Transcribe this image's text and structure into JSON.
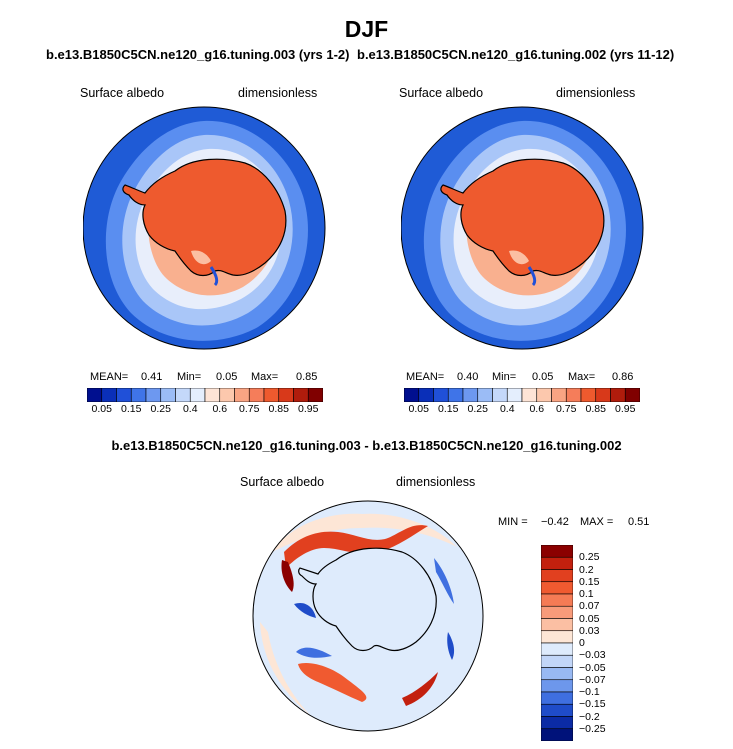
{
  "title": "DJF",
  "case_left": "b.e13.B1850C5CN.ne120_g16.tuning.003 (yrs 1-2)",
  "case_right": "b.e13.B1850C5CN.ne120_g16.tuning.002 (yrs 11-12)",
  "diff_title": "b.e13.B1850C5CN.ne120_g16.tuning.003 - b.e13.B1850C5CN.ne120_g16.tuning.002",
  "colors": {
    "land_orange": "#ee5a2e",
    "ocean_blue": "#1f5bd6"
  },
  "chart_data": [
    {
      "type": "heatmap",
      "projection": "south-polar-stereographic",
      "variable": "Surface albedo",
      "units": "dimensionless",
      "stats": {
        "mean_label": "MEAN=",
        "mean": "0.41",
        "min_label": "Min=",
        "min": "0.05",
        "max_label": "Max=",
        "max": "0.85"
      },
      "colorbar": {
        "orientation": "horizontal",
        "levels": [
          "0.05",
          "0.15",
          "0.25",
          "0.4",
          "0.6",
          "0.75",
          "0.85",
          "0.95"
        ],
        "colors": [
          "#000f8f",
          "#0a2fb8",
          "#2050d8",
          "#3f74e8",
          "#6d98f0",
          "#9bbcf6",
          "#c4d8fa",
          "#e4eefd",
          "#fde4d6",
          "#fcc8ad",
          "#f9a483",
          "#f57d5a",
          "#ee5a2e",
          "#d8391a",
          "#b01c0c",
          "#800000"
        ]
      }
    },
    {
      "type": "heatmap",
      "projection": "south-polar-stereographic",
      "variable": "Surface albedo",
      "units": "dimensionless",
      "stats": {
        "mean_label": "MEAN=",
        "mean": "0.40",
        "min_label": "Min=",
        "min": "0.05",
        "max_label": "Max=",
        "max": "0.86"
      },
      "colorbar": {
        "orientation": "horizontal",
        "levels": [
          "0.05",
          "0.15",
          "0.25",
          "0.4",
          "0.6",
          "0.75",
          "0.85",
          "0.95"
        ],
        "colors": [
          "#000f8f",
          "#0a2fb8",
          "#2050d8",
          "#3f74e8",
          "#6d98f0",
          "#9bbcf6",
          "#c4d8fa",
          "#e4eefd",
          "#fde4d6",
          "#fcc8ad",
          "#f9a483",
          "#f57d5a",
          "#ee5a2e",
          "#d8391a",
          "#b01c0c",
          "#800000"
        ]
      }
    },
    {
      "type": "heatmap",
      "projection": "south-polar-stereographic",
      "variable": "Surface albedo",
      "units": "dimensionless",
      "stats": {
        "min_label": "MIN =",
        "min": "-0.42",
        "max_label": "MAX =",
        "max": "0.51"
      },
      "colorbar": {
        "orientation": "vertical",
        "levels": [
          "0.25",
          "0.2",
          "0.15",
          "0.1",
          "0.07",
          "0.05",
          "0.03",
          "0",
          "-0.03",
          "-0.05",
          "-0.07",
          "-0.1",
          "-0.15",
          "-0.2",
          "-0.25"
        ],
        "colors": [
          "#8b0000",
          "#c3200e",
          "#e1401f",
          "#f05a30",
          "#f57b55",
          "#f89b7a",
          "#fbbfa3",
          "#fde6d6",
          "#deebfc",
          "#c2d6f8",
          "#98b9f3",
          "#6d97ec",
          "#3f6fe0",
          "#1f4cc9",
          "#0b2ba5",
          "#00127a"
        ]
      }
    }
  ]
}
